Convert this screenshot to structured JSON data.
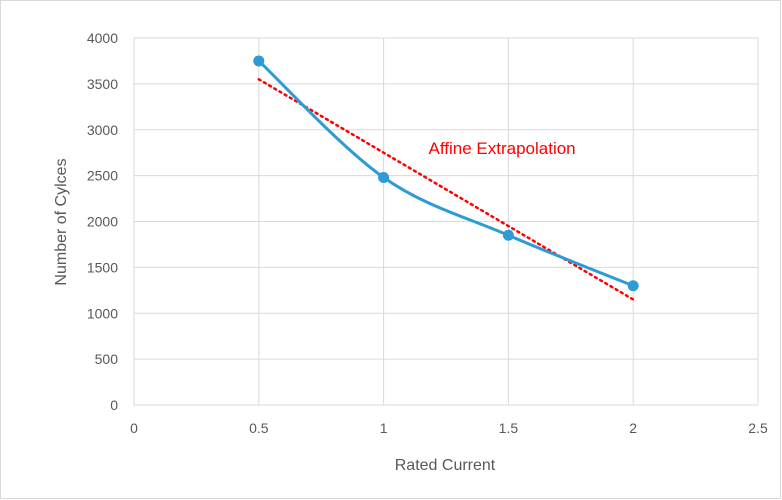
{
  "chart_data": {
    "type": "line",
    "title": "",
    "xlabel": "Rated Current",
    "ylabel": "Number of Cylces",
    "xlim": [
      0,
      2.5
    ],
    "ylim": [
      0,
      4000
    ],
    "x_ticks": [
      0,
      0.5,
      1,
      1.5,
      2,
      2.5
    ],
    "x_tick_labels": [
      "0",
      "0.5",
      "1",
      "1.5",
      "2",
      "2.5"
    ],
    "y_ticks": [
      0,
      500,
      1000,
      1500,
      2000,
      2500,
      3000,
      3500,
      4000
    ],
    "y_tick_labels": [
      "0",
      "500",
      "1000",
      "1500",
      "2000",
      "2500",
      "3000",
      "3500",
      "4000"
    ],
    "grid": true,
    "series": [
      {
        "x": [
          0.5,
          1,
          1.5,
          2
        ],
        "values": [
          3750,
          2480,
          1850,
          1300
        ],
        "color": "#2e9bd6",
        "style": "smooth-line-markers"
      }
    ],
    "trendline": {
      "x": [
        0.5,
        2
      ],
      "values": [
        3550,
        1150
      ],
      "color": "#ff0000",
      "style": "dotted"
    },
    "annotations": [
      {
        "text": "Affine Extrapolation",
        "color": "#ff0000",
        "x": 1.18,
        "y": 2735
      }
    ]
  }
}
